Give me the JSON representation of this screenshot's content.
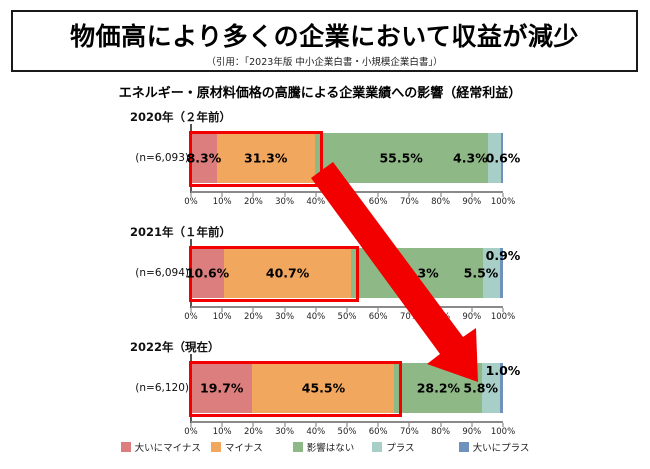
{
  "header": {
    "title": "物価高により多くの企業において収益が減少",
    "subtitle": "（引用：「2023年版 中小企業白書・小規模企業白書」）"
  },
  "chart_title": "エネルギー・原材料価格の高騰による企業業績への影響（経常利益）",
  "chart_data": {
    "type": "bar",
    "orientation": "horizontal",
    "stacked": true,
    "title": "エネルギー・原材料価格の高騰による企業業績への影響（経常利益）",
    "categories": [
      "2020年（２年前）",
      "2021年（１年前）",
      "2022年（現在）"
    ],
    "sample_sizes": [
      "(n=6,093)",
      "(n=6,094)",
      "(n=6,120)"
    ],
    "series": [
      {
        "name": "大いにマイナス",
        "color": "#DC7E7E",
        "values": [
          8.3,
          10.6,
          19.7
        ]
      },
      {
        "name": "マイナス",
        "color": "#F2A75F",
        "values": [
          31.3,
          40.7,
          45.5
        ]
      },
      {
        "name": "影響はない",
        "color": "#8EB886",
        "values": [
          55.5,
          42.3,
          28.2
        ]
      },
      {
        "name": "プラス",
        "color": "#A8CEC8",
        "values": [
          4.3,
          5.5,
          5.8
        ]
      },
      {
        "name": "大いにプラス",
        "color": "#6F92BD",
        "values": [
          0.6,
          0.9,
          1.0
        ]
      }
    ],
    "axis_ticks": [
      "0%",
      "10%",
      "20%",
      "30%",
      "40%",
      "50%",
      "60%",
      "70%",
      "80%",
      "90%",
      "100%"
    ],
    "xlim": [
      0,
      100
    ],
    "grid": false,
    "legend_position": "bottom",
    "last_label_layout": [
      "inline",
      "above",
      "above"
    ],
    "highlight": {
      "color": "#F20000",
      "outlined_series": [
        "大いにマイナス",
        "マイナス"
      ],
      "annotation": "negative-impact share grows: arrow from 2020 bar to 2022 bar"
    }
  },
  "legend": {
    "items": [
      {
        "label": "大いにマイナス",
        "color": "#DC7E7E"
      },
      {
        "label": "マイナス",
        "color": "#F2A75F"
      },
      {
        "label": "影響はない",
        "color": "#8EB886"
      },
      {
        "label": "プラス",
        "color": "#A8CEC8"
      },
      {
        "label": "大いにプラス",
        "color": "#6F92BD"
      }
    ]
  }
}
